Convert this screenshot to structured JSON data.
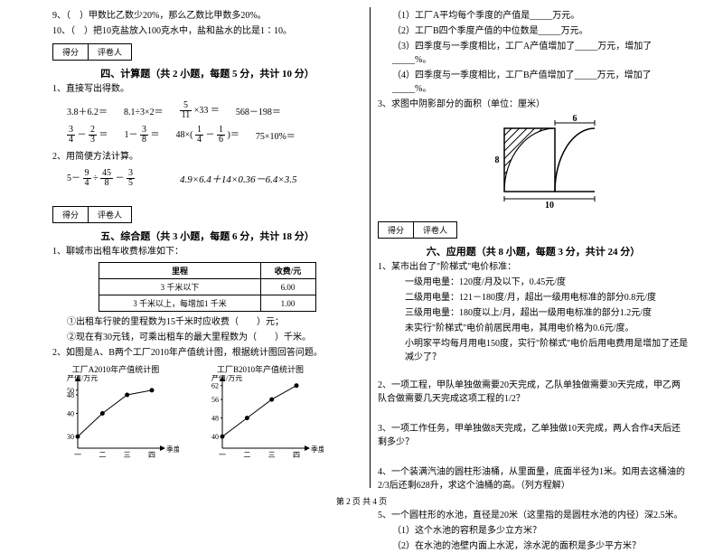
{
  "left": {
    "q9": "9、（　）甲数比乙数少20%，那么乙数比甲数多20%。",
    "q10": "10、（　）把10克盐放入100克水中，盐和盐水的比是1∶10。",
    "score_l": "得分",
    "score_r": "评卷人",
    "sec4_title": "四、计算题（共 2 小题，每题 5 分，共计 10 分）",
    "sec4_1": "1、直接写出得数。",
    "r1a": "3.8＋6.2＝",
    "r1b": "8.1÷3×2＝",
    "r1c_pre": "",
    "r1c_n": "5",
    "r1c_d": "11",
    "r1c_post": "×33 ＝",
    "r1d": "568－198＝",
    "r2a_n1": "3",
    "r2a_d1": "4",
    "r2a_mid": "－",
    "r2a_n2": "2",
    "r2a_d2": "3",
    "r2a_eq": "＝",
    "r2b_pre": "1－",
    "r2b_n": "3",
    "r2b_d": "8",
    "r2b_eq": "＝",
    "r2c_pre": "48×(",
    "r2c_n1": "1",
    "r2c_d1": "4",
    "r2c_mid": "－",
    "r2c_n2": "1",
    "r2c_d2": "6",
    "r2c_post": ")＝",
    "r2d": "75×10%＝",
    "sec4_2": "2、用简便方法计算。",
    "r3_pre": "5－",
    "r3_n1": "9",
    "r3_d1": "4",
    "r3_div": "÷",
    "r3_n2": "45",
    "r3_d2": "8",
    "r3_sub": "－",
    "r3_n3": "3",
    "r3_d3": "5",
    "r3_right": "4.9×6.4＋14×0.36－6.4×3.5",
    "sec5_title": "五、综合题（共 3 小题，每题 6 分，共计 18 分）",
    "sec5_1": "1、聊城市出租车收费标准如下：",
    "taxi": {
      "h1": "里程",
      "h2": "收费/元",
      "r1a": "3 千米以下",
      "r1b": "6.00",
      "r2a": "3 千米以上，每增加1 千米",
      "r2b": "1.00"
    },
    "taxi_q1": "①出租车行驶的里程数为15千米时应收费（　　）元；",
    "taxi_q2": "②现在有30元钱，可乘出租车的最大里程数为（　　）千米。",
    "sec5_2": "2、如图是A、B两个工厂2010年产值统计图，根据统计图回答问题。",
    "chartA": {
      "title": "工厂A2010年产值统计图",
      "ylabel": "产值/万元",
      "xlabel": "季度",
      "yticks": [
        "30",
        "40",
        "48",
        "50"
      ],
      "xticks": [
        "一",
        "二",
        "三",
        "四"
      ],
      "points": [
        [
          0,
          30
        ],
        [
          1,
          40
        ],
        [
          2,
          48
        ],
        [
          3,
          50
        ]
      ],
      "ylim": [
        25,
        55
      ],
      "color": "#000000"
    },
    "chartB": {
      "title": "工厂B2010年产值统计图",
      "ylabel": "产值/万元",
      "xlabel": "季度",
      "yticks": [
        "40",
        "48",
        "56",
        "62"
      ],
      "xticks": [
        "一",
        "二",
        "三",
        "四"
      ],
      "points": [
        [
          0,
          40
        ],
        [
          1,
          48
        ],
        [
          2,
          56
        ],
        [
          3,
          62
        ]
      ],
      "ylim": [
        35,
        65
      ],
      "color": "#000000"
    }
  },
  "right": {
    "q2_1": "（1）工厂A平均每个季度的产值是_____万元。",
    "q2_2": "（2）工厂B四个季度产值的中位数是_____万元。",
    "q2_3": "（3）四季度与一季度相比，工厂A产值增加了_____万元，增加了_____%。",
    "q2_4": "（4）四季度与一季度相比，工厂B产值增加了_____万元，增加了_____%。",
    "sec5_3": "3、求图中阴影部分的面积（单位：厘米）",
    "figure": {
      "top_label": "6",
      "left_label": "8",
      "bottom_label": "10",
      "stroke": "#000000",
      "hatch": "#000000"
    },
    "score_l": "得分",
    "score_r": "评卷人",
    "sec6_title": "六、应用题（共 8 小题，每题 3 分，共计 24 分）",
    "q6_1": "1、某市出台了\"阶梯式\"电价标准：",
    "q6_1a": "一级用电量：120度/月及以下，0.45元/度",
    "q6_1b": "二级用电量：121－180度/月，超出一级用电标准的部分0.8元/度",
    "q6_1c": "三级用电量：180度以上/月，超出一级用电标准的部分1.2元/度",
    "q6_1d": "未实行\"阶梯式\"电价前居民用电，其用电价格为0.6元/度。",
    "q6_1e": "小明家平均每月用电150度，实行\"阶梯式\"电价后用电费用是增加了还是减少了？",
    "q6_2": "2、一项工程，甲队单独做需要20天完成，乙队单独做需要30天完成，甲乙两队合做需要几天完成这项工程的1/2？",
    "q6_3": "3、一项工作任务，甲单独做8天完成，乙单独做10天完成，两人合作4天后还剩多少？",
    "q6_4": "4、一个装满汽油的圆柱形油桶，从里面量，底面半径为1米。如用去这桶油的2/3后还剩628升，求这个油桶的高。（列方程解）",
    "q6_5": "5、一个圆柱形的水池，直径是20米（这里指的是圆柱水池的内径）深2.5米。",
    "q6_5a": "（1）这个水池的容积是多少立方米？",
    "q6_5b": "（2）在水池的池壁内面上水泥，涂水泥的面积是多少平方米？"
  },
  "footer": "第 2 页 共 4 页"
}
